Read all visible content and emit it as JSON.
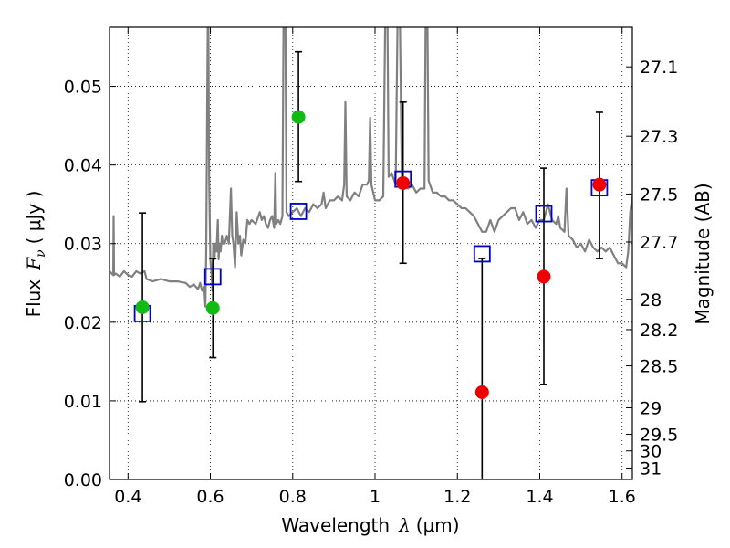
{
  "chart_data": {
    "type": "scatter",
    "xlabel_prefix": "Wavelength",
    "xlabel_symbol": "λ",
    "xlabel_unit": "(μm)",
    "ylabel_prefix": "Flux",
    "ylabel_symbol": "F",
    "ylabel_subscript": "ν",
    "ylabel_unit": "( μJy )",
    "y2label": "Magnitude (AB)",
    "xlim": [
      0.355,
      1.625
    ],
    "ylim": [
      0.0,
      0.0575
    ],
    "grid": true,
    "x_ticks": [
      0.4,
      0.6,
      0.8,
      1.0,
      1.2,
      1.4,
      1.6
    ],
    "x_tick_labels": [
      "0.4",
      "0.6",
      "0.8",
      "1",
      "1.2",
      "1.4",
      "1.6"
    ],
    "y_ticks": [
      0.0,
      0.01,
      0.02,
      0.03,
      0.04,
      0.05
    ],
    "y_tick_labels": [
      "0.00",
      "0.01",
      "0.02",
      "0.03",
      "0.04",
      "0.05"
    ],
    "mag_ticks": [
      27.1,
      27.3,
      27.5,
      27.7,
      28,
      28.2,
      28.5,
      29,
      29.5,
      30,
      31
    ],
    "mag_tick_labels": [
      "27.1",
      "27.3",
      "27.5",
      "27.7",
      "28",
      "28.2",
      "28.5",
      "29",
      "29.5",
      "30",
      "31"
    ],
    "colors": {
      "green": "#11bb11",
      "red": "#ee0000",
      "blue_square": "#0000cc",
      "spectrum": "#808080",
      "errorbar": "#000000"
    },
    "green_points": [
      {
        "x": 0.435,
        "y": 0.0219
      },
      {
        "x": 0.606,
        "y": 0.0218
      },
      {
        "x": 0.814,
        "y": 0.0461
      }
    ],
    "red_points": [
      {
        "x": 1.068,
        "y": 0.0377
      },
      {
        "x": 1.26,
        "y": 0.0111
      },
      {
        "x": 1.41,
        "y": 0.0258
      },
      {
        "x": 1.545,
        "y": 0.0375
      }
    ],
    "model_squares": [
      {
        "x": 0.435,
        "y": 0.0211
      },
      {
        "x": 0.606,
        "y": 0.0258
      },
      {
        "x": 0.814,
        "y": 0.0341
      },
      {
        "x": 1.068,
        "y": 0.0382
      },
      {
        "x": 1.26,
        "y": 0.0287
      },
      {
        "x": 1.41,
        "y": 0.0338
      },
      {
        "x": 1.545,
        "y": 0.0371
      }
    ],
    "error_bars": [
      {
        "x": 0.435,
        "low": 0.0099,
        "high": 0.0339
      },
      {
        "x": 0.606,
        "low": 0.0155,
        "high": 0.0281
      },
      {
        "x": 0.814,
        "low": 0.0379,
        "high": 0.0544
      },
      {
        "x": 1.068,
        "low": 0.0275,
        "high": 0.048
      },
      {
        "x": 1.26,
        "low": 0.0,
        "high": 0.0281
      },
      {
        "x": 1.41,
        "low": 0.0121,
        "high": 0.0396
      },
      {
        "x": 1.545,
        "low": 0.0281,
        "high": 0.0467
      }
    ],
    "spectrum": [
      [
        0.355,
        0.0265
      ],
      [
        0.36,
        0.0262
      ],
      [
        0.364,
        0.026
      ],
      [
        0.365,
        0.0335
      ],
      [
        0.366,
        0.026
      ],
      [
        0.37,
        0.0262
      ],
      [
        0.38,
        0.0258
      ],
      [
        0.39,
        0.0265
      ],
      [
        0.4,
        0.026
      ],
      [
        0.41,
        0.0258
      ],
      [
        0.42,
        0.0265
      ],
      [
        0.43,
        0.0262
      ],
      [
        0.44,
        0.0265
      ],
      [
        0.445,
        0.0255
      ],
      [
        0.46,
        0.0252
      ],
      [
        0.48,
        0.0255
      ],
      [
        0.5,
        0.0252
      ],
      [
        0.52,
        0.0252
      ],
      [
        0.54,
        0.025
      ],
      [
        0.55,
        0.0245
      ],
      [
        0.56,
        0.0248
      ],
      [
        0.57,
        0.0242
      ],
      [
        0.575,
        0.025
      ],
      [
        0.58,
        0.024
      ],
      [
        0.585,
        0.0245
      ],
      [
        0.588,
        0.022
      ],
      [
        0.59,
        0.029
      ],
      [
        0.592,
        0.045
      ],
      [
        0.594,
        0.06
      ],
      [
        0.595,
        0.06
      ],
      [
        0.597,
        0.038
      ],
      [
        0.6,
        0.028
      ],
      [
        0.603,
        0.026
      ],
      [
        0.605,
        0.024
      ],
      [
        0.607,
        0.03
      ],
      [
        0.61,
        0.028
      ],
      [
        0.612,
        0.03
      ],
      [
        0.615,
        0.029
      ],
      [
        0.618,
        0.033
      ],
      [
        0.62,
        0.028
      ],
      [
        0.622,
        0.03
      ],
      [
        0.625,
        0.029
      ],
      [
        0.628,
        0.031
      ],
      [
        0.63,
        0.03
      ],
      [
        0.635,
        0.03
      ],
      [
        0.64,
        0.031
      ],
      [
        0.645,
        0.03
      ],
      [
        0.65,
        0.037
      ],
      [
        0.653,
        0.031
      ],
      [
        0.656,
        0.03
      ],
      [
        0.66,
        0.027
      ],
      [
        0.664,
        0.034
      ],
      [
        0.668,
        0.03
      ],
      [
        0.672,
        0.031
      ],
      [
        0.675,
        0.0285
      ],
      [
        0.68,
        0.0305
      ],
      [
        0.685,
        0.03
      ],
      [
        0.69,
        0.033
      ],
      [
        0.695,
        0.0325
      ],
      [
        0.7,
        0.033
      ],
      [
        0.71,
        0.0325
      ],
      [
        0.72,
        0.034
      ],
      [
        0.725,
        0.033
      ],
      [
        0.73,
        0.0335
      ],
      [
        0.735,
        0.0325
      ],
      [
        0.74,
        0.032
      ],
      [
        0.745,
        0.033
      ],
      [
        0.75,
        0.0335
      ],
      [
        0.755,
        0.032
      ],
      [
        0.758,
        0.039
      ],
      [
        0.76,
        0.0325
      ],
      [
        0.765,
        0.033
      ],
      [
        0.77,
        0.0325
      ],
      [
        0.775,
        0.0335
      ],
      [
        0.778,
        0.06
      ],
      [
        0.782,
        0.06
      ],
      [
        0.785,
        0.034
      ],
      [
        0.79,
        0.0335
      ],
      [
        0.8,
        0.034
      ],
      [
        0.81,
        0.0345
      ],
      [
        0.82,
        0.0335
      ],
      [
        0.83,
        0.0345
      ],
      [
        0.84,
        0.034
      ],
      [
        0.85,
        0.035
      ],
      [
        0.86,
        0.0345
      ],
      [
        0.87,
        0.035
      ],
      [
        0.875,
        0.0365
      ],
      [
        0.88,
        0.0345
      ],
      [
        0.89,
        0.0355
      ],
      [
        0.9,
        0.0355
      ],
      [
        0.91,
        0.036
      ],
      [
        0.92,
        0.0355
      ],
      [
        0.925,
        0.0375
      ],
      [
        0.928,
        0.048
      ],
      [
        0.931,
        0.036
      ],
      [
        0.94,
        0.0355
      ],
      [
        0.95,
        0.0365
      ],
      [
        0.96,
        0.036
      ],
      [
        0.97,
        0.0375
      ],
      [
        0.98,
        0.0375
      ],
      [
        0.985,
        0.038
      ],
      [
        0.988,
        0.046
      ],
      [
        0.991,
        0.0375
      ],
      [
        1.0,
        0.0355
      ],
      [
        1.01,
        0.0355
      ],
      [
        1.02,
        0.036
      ],
      [
        1.025,
        0.06
      ],
      [
        1.03,
        0.06
      ],
      [
        1.033,
        0.0385
      ],
      [
        1.04,
        0.039
      ],
      [
        1.05,
        0.0375
      ],
      [
        1.055,
        0.06
      ],
      [
        1.06,
        0.06
      ],
      [
        1.065,
        0.0385
      ],
      [
        1.07,
        0.0375
      ],
      [
        1.08,
        0.037
      ],
      [
        1.09,
        0.0375
      ],
      [
        1.1,
        0.0365
      ],
      [
        1.11,
        0.037
      ],
      [
        1.12,
        0.037
      ],
      [
        1.123,
        0.06
      ],
      [
        1.127,
        0.06
      ],
      [
        1.13,
        0.038
      ],
      [
        1.14,
        0.0365
      ],
      [
        1.15,
        0.0365
      ],
      [
        1.16,
        0.036
      ],
      [
        1.17,
        0.036
      ],
      [
        1.18,
        0.0355
      ],
      [
        1.19,
        0.0355
      ],
      [
        1.2,
        0.035
      ],
      [
        1.21,
        0.0345
      ],
      [
        1.22,
        0.0345
      ],
      [
        1.23,
        0.034
      ],
      [
        1.24,
        0.0335
      ],
      [
        1.25,
        0.0325
      ],
      [
        1.26,
        0.0315
      ],
      [
        1.27,
        0.0315
      ],
      [
        1.28,
        0.033
      ],
      [
        1.29,
        0.0315
      ],
      [
        1.3,
        0.033
      ],
      [
        1.31,
        0.0335
      ],
      [
        1.32,
        0.034
      ],
      [
        1.33,
        0.0345
      ],
      [
        1.34,
        0.0345
      ],
      [
        1.35,
        0.033
      ],
      [
        1.36,
        0.034
      ],
      [
        1.37,
        0.0325
      ],
      [
        1.38,
        0.033
      ],
      [
        1.39,
        0.032
      ],
      [
        1.4,
        0.033
      ],
      [
        1.41,
        0.033
      ],
      [
        1.42,
        0.035
      ],
      [
        1.43,
        0.033
      ],
      [
        1.44,
        0.0325
      ],
      [
        1.445,
        0.0335
      ],
      [
        1.45,
        0.032
      ],
      [
        1.46,
        0.0315
      ],
      [
        1.465,
        0.037
      ],
      [
        1.47,
        0.031
      ],
      [
        1.48,
        0.0305
      ],
      [
        1.49,
        0.0295
      ],
      [
        1.5,
        0.03
      ],
      [
        1.51,
        0.029
      ],
      [
        1.52,
        0.0305
      ],
      [
        1.53,
        0.0295
      ],
      [
        1.54,
        0.029
      ],
      [
        1.55,
        0.0295
      ],
      [
        1.56,
        0.029
      ],
      [
        1.57,
        0.0295
      ],
      [
        1.58,
        0.0285
      ],
      [
        1.59,
        0.0275
      ],
      [
        1.6,
        0.0275
      ],
      [
        1.61,
        0.027
      ],
      [
        1.615,
        0.029
      ],
      [
        1.62,
        0.034
      ],
      [
        1.625,
        0.036
      ]
    ]
  }
}
